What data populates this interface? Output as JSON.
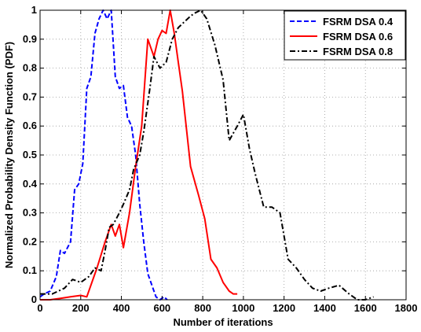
{
  "chart_data": {
    "type": "line",
    "title": "",
    "xlabel": "Number of iterations",
    "ylabel": "Normalized Probability Density Function (PDF)",
    "xlim": [
      0,
      1800
    ],
    "ylim": [
      0,
      1
    ],
    "xticks": [
      0,
      200,
      400,
      600,
      800,
      1000,
      1200,
      1400,
      1600,
      1800
    ],
    "yticks": [
      0,
      0.1,
      0.2,
      0.3,
      0.4,
      0.5,
      0.6,
      0.7,
      0.8,
      0.9,
      1
    ],
    "grid": true,
    "legend_position": "top-right",
    "series": [
      {
        "name": "FSRM DSA 0.4",
        "color": "#0000ff",
        "style": "dashed",
        "x": [
          0,
          20,
          50,
          80,
          100,
          120,
          150,
          170,
          190,
          210,
          230,
          250,
          270,
          290,
          310,
          330,
          350,
          370,
          390,
          410,
          430,
          450,
          470,
          490,
          510,
          530,
          550,
          570,
          590,
          610,
          625
        ],
        "y": [
          0.01,
          0.02,
          0.03,
          0.08,
          0.17,
          0.16,
          0.2,
          0.38,
          0.4,
          0.47,
          0.73,
          0.77,
          0.92,
          0.97,
          1.0,
          0.97,
          1.0,
          0.77,
          0.73,
          0.74,
          0.63,
          0.6,
          0.5,
          0.33,
          0.2,
          0.09,
          0.05,
          0.01,
          0.0,
          0.01,
          0.0
        ]
      },
      {
        "name": "FSRM DSA 0.6",
        "color": "#ff0000",
        "style": "solid",
        "x": [
          0,
          50,
          100,
          150,
          200,
          230,
          280,
          320,
          350,
          370,
          390,
          410,
          440,
          470,
          500,
          530,
          560,
          580,
          600,
          620,
          640,
          660,
          680,
          700,
          740,
          780,
          810,
          840,
          870,
          900,
          930,
          950,
          970
        ],
        "y": [
          0.0,
          0.0,
          0.005,
          0.01,
          0.015,
          0.01,
          0.11,
          0.2,
          0.26,
          0.22,
          0.26,
          0.18,
          0.3,
          0.46,
          0.6,
          0.9,
          0.84,
          0.9,
          0.93,
          0.92,
          1.0,
          0.92,
          0.82,
          0.72,
          0.46,
          0.36,
          0.28,
          0.14,
          0.11,
          0.06,
          0.03,
          0.02,
          0.02
        ]
      },
      {
        "name": "FSRM DSA 0.8",
        "color": "#000000",
        "style": "dashdot",
        "x": [
          0,
          60,
          120,
          160,
          200,
          240,
          270,
          300,
          320,
          340,
          360,
          390,
          410,
          440,
          460,
          490,
          510,
          540,
          560,
          590,
          620,
          650,
          680,
          710,
          740,
          760,
          790,
          820,
          860,
          900,
          930,
          970,
          1000,
          1030,
          1060,
          1100,
          1140,
          1180,
          1220,
          1260,
          1300,
          1340,
          1380,
          1420,
          1470,
          1520,
          1560,
          1600,
          1640
        ],
        "y": [
          0.02,
          0.02,
          0.04,
          0.07,
          0.06,
          0.08,
          0.11,
          0.1,
          0.17,
          0.25,
          0.26,
          0.3,
          0.33,
          0.38,
          0.45,
          0.5,
          0.58,
          0.73,
          0.84,
          0.8,
          0.82,
          0.9,
          0.94,
          0.96,
          0.98,
          0.99,
          1.0,
          0.97,
          0.88,
          0.76,
          0.55,
          0.6,
          0.64,
          0.52,
          0.43,
          0.32,
          0.32,
          0.3,
          0.14,
          0.11,
          0.07,
          0.04,
          0.03,
          0.04,
          0.05,
          0.02,
          0.0,
          0.0,
          0.01
        ]
      }
    ]
  }
}
